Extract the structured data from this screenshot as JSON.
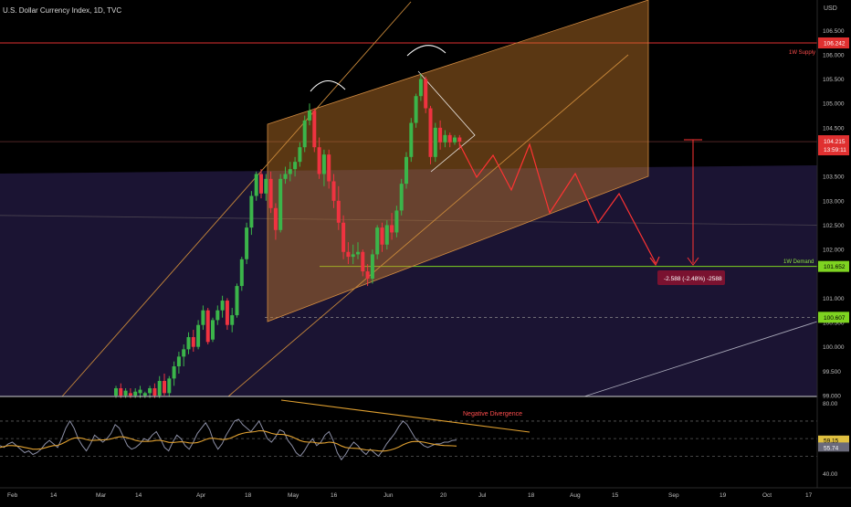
{
  "header": {
    "symbol_title": "U.S. Dollar Currency Index, 1D, TVC"
  },
  "price_axis": {
    "unit": "USD",
    "tick_labels": [
      "106.500",
      "106.000",
      "105.500",
      "105.000",
      "104.500",
      "103.500",
      "103.000",
      "102.500",
      "102.000",
      "101.000",
      "100.500",
      "100.000",
      "99.500",
      "99.000"
    ]
  },
  "badges": {
    "supply_price": "106.242",
    "current_price": "104.215",
    "countdown": "13:59:11",
    "demand_price": "101.652",
    "support_price": "100.607"
  },
  "annotations": {
    "supply_label": "1W Supply",
    "demand_label": "1W Demand",
    "measure_label": "-2.588 (-2.48%) -2588",
    "divergence_label": "Negative Divergence"
  },
  "rsi_panel": {
    "tick_labels": [
      "80.00",
      "40.00"
    ],
    "rsi_value": "59.15",
    "rsi_ma_value": "55.74"
  },
  "time_axis": {
    "labels": [
      "Feb",
      "14",
      "Mar",
      "14",
      "Apr",
      "18",
      "May",
      "16",
      "Jun",
      "20",
      "Jul",
      "18",
      "Aug",
      "15",
      "Sep",
      "19",
      "Oct",
      "17"
    ]
  },
  "colors": {
    "background": "#000000",
    "up_candle": "#3bb54a",
    "down_candle": "#ef3340",
    "channel_fill": "#c8792a",
    "zone_fill": "#1b1433",
    "supply_line": "#e03030",
    "demand_line": "#7ed321",
    "projection": "#ff3333",
    "rsi_line": "#8c8fa6",
    "rsi_ma": "#e0a030"
  },
  "chart_data": [
    {
      "type": "candlestick",
      "title": "U.S. Dollar Currency Index, 1D, TVC",
      "ylim": [
        98.95,
        107.2
      ],
      "ohlc": [
        {
          "o": 99.0,
          "h": 99.2,
          "l": 98.95,
          "c": 99.15
        },
        {
          "o": 99.15,
          "h": 99.25,
          "l": 98.95,
          "c": 99.0
        },
        {
          "o": 99.0,
          "h": 99.15,
          "l": 98.95,
          "c": 99.1
        },
        {
          "o": 99.05,
          "h": 99.15,
          "l": 98.95,
          "c": 99.0
        },
        {
          "o": 99.0,
          "h": 99.15,
          "l": 98.95,
          "c": 99.08
        },
        {
          "o": 99.05,
          "h": 99.2,
          "l": 98.95,
          "c": 99.12
        },
        {
          "o": 99.0,
          "h": 99.08,
          "l": 98.95,
          "c": 99.05
        },
        {
          "o": 99.05,
          "h": 99.2,
          "l": 98.95,
          "c": 99.15
        },
        {
          "o": 99.15,
          "h": 99.25,
          "l": 98.95,
          "c": 99.0
        },
        {
          "o": 99.0,
          "h": 99.4,
          "l": 98.95,
          "c": 99.3
        },
        {
          "o": 99.3,
          "h": 99.45,
          "l": 99.0,
          "c": 99.05
        },
        {
          "o": 99.05,
          "h": 99.4,
          "l": 98.98,
          "c": 99.35
        },
        {
          "o": 99.35,
          "h": 99.7,
          "l": 99.2,
          "c": 99.6
        },
        {
          "o": 99.6,
          "h": 99.9,
          "l": 99.45,
          "c": 99.8
        },
        {
          "o": 99.8,
          "h": 100.05,
          "l": 99.6,
          "c": 99.95
        },
        {
          "o": 99.95,
          "h": 100.3,
          "l": 99.85,
          "c": 100.2
        },
        {
          "o": 100.2,
          "h": 100.35,
          "l": 99.9,
          "c": 100.0
        },
        {
          "o": 100.0,
          "h": 100.55,
          "l": 99.95,
          "c": 100.45
        },
        {
          "o": 100.45,
          "h": 100.85,
          "l": 100.35,
          "c": 100.75
        },
        {
          "o": 100.75,
          "h": 100.8,
          "l": 100.05,
          "c": 100.1
        },
        {
          "o": 100.15,
          "h": 100.6,
          "l": 100.1,
          "c": 100.55
        },
        {
          "o": 100.55,
          "h": 100.85,
          "l": 100.45,
          "c": 100.75
        },
        {
          "o": 100.75,
          "h": 101.05,
          "l": 100.6,
          "c": 100.95
        },
        {
          "o": 100.95,
          "h": 101.0,
          "l": 100.35,
          "c": 100.45
        },
        {
          "o": 100.45,
          "h": 100.8,
          "l": 100.3,
          "c": 100.65
        },
        {
          "o": 100.65,
          "h": 101.3,
          "l": 100.6,
          "c": 101.25
        },
        {
          "o": 101.25,
          "h": 101.85,
          "l": 101.15,
          "c": 101.8
        },
        {
          "o": 101.8,
          "h": 102.55,
          "l": 101.7,
          "c": 102.45
        },
        {
          "o": 102.45,
          "h": 103.2,
          "l": 102.3,
          "c": 103.1
        },
        {
          "o": 103.1,
          "h": 103.6,
          "l": 103.0,
          "c": 103.55
        },
        {
          "o": 103.55,
          "h": 103.65,
          "l": 103.05,
          "c": 103.15
        },
        {
          "o": 103.15,
          "h": 103.55,
          "l": 103.0,
          "c": 103.45
        },
        {
          "o": 103.45,
          "h": 103.6,
          "l": 102.75,
          "c": 102.85
        },
        {
          "o": 102.85,
          "h": 102.95,
          "l": 102.2,
          "c": 102.4
        },
        {
          "o": 102.4,
          "h": 103.55,
          "l": 102.35,
          "c": 103.45
        },
        {
          "o": 103.45,
          "h": 103.7,
          "l": 103.35,
          "c": 103.55
        },
        {
          "o": 103.55,
          "h": 103.8,
          "l": 103.4,
          "c": 103.65
        },
        {
          "o": 103.65,
          "h": 103.9,
          "l": 103.5,
          "c": 103.8
        },
        {
          "o": 103.8,
          "h": 104.2,
          "l": 103.7,
          "c": 104.1
        },
        {
          "o": 104.1,
          "h": 104.75,
          "l": 104.0,
          "c": 104.65
        },
        {
          "o": 104.65,
          "h": 105.0,
          "l": 104.55,
          "c": 104.85
        },
        {
          "o": 104.85,
          "h": 104.9,
          "l": 104.0,
          "c": 104.1
        },
        {
          "o": 104.1,
          "h": 104.3,
          "l": 103.45,
          "c": 103.55
        },
        {
          "o": 103.55,
          "h": 104.05,
          "l": 103.3,
          "c": 103.95
        },
        {
          "o": 103.95,
          "h": 104.05,
          "l": 103.25,
          "c": 103.4
        },
        {
          "o": 103.4,
          "h": 103.55,
          "l": 102.85,
          "c": 103.0
        },
        {
          "o": 103.0,
          "h": 103.3,
          "l": 102.4,
          "c": 102.55
        },
        {
          "o": 102.55,
          "h": 102.7,
          "l": 101.8,
          "c": 101.95
        },
        {
          "o": 101.95,
          "h": 102.15,
          "l": 101.7,
          "c": 101.85
        },
        {
          "o": 101.85,
          "h": 102.1,
          "l": 101.7,
          "c": 101.9
        },
        {
          "o": 101.9,
          "h": 102.15,
          "l": 101.8,
          "c": 101.95
        },
        {
          "o": 101.95,
          "h": 102.0,
          "l": 101.45,
          "c": 101.55
        },
        {
          "o": 101.55,
          "h": 101.7,
          "l": 101.25,
          "c": 101.4
        },
        {
          "o": 101.4,
          "h": 102.0,
          "l": 101.3,
          "c": 101.9
        },
        {
          "o": 101.9,
          "h": 102.5,
          "l": 101.8,
          "c": 102.45
        },
        {
          "o": 102.45,
          "h": 102.55,
          "l": 101.95,
          "c": 102.1
        },
        {
          "o": 102.1,
          "h": 102.6,
          "l": 102.0,
          "c": 102.5
        },
        {
          "o": 102.5,
          "h": 102.75,
          "l": 102.2,
          "c": 102.35
        },
        {
          "o": 102.35,
          "h": 102.9,
          "l": 102.25,
          "c": 102.8
        },
        {
          "o": 102.8,
          "h": 103.45,
          "l": 102.7,
          "c": 103.35
        },
        {
          "o": 103.35,
          "h": 104.0,
          "l": 103.25,
          "c": 103.9
        },
        {
          "o": 103.9,
          "h": 104.7,
          "l": 103.8,
          "c": 104.6
        },
        {
          "o": 104.6,
          "h": 105.2,
          "l": 104.5,
          "c": 105.15
        },
        {
          "o": 105.15,
          "h": 105.6,
          "l": 105.05,
          "c": 105.5
        },
        {
          "o": 105.5,
          "h": 105.55,
          "l": 104.8,
          "c": 104.9
        },
        {
          "o": 104.9,
          "h": 104.95,
          "l": 103.75,
          "c": 103.9
        },
        {
          "o": 103.9,
          "h": 104.6,
          "l": 103.8,
          "c": 104.5
        },
        {
          "o": 104.5,
          "h": 104.65,
          "l": 104.05,
          "c": 104.2
        },
        {
          "o": 104.2,
          "h": 104.45,
          "l": 104.1,
          "c": 104.35
        },
        {
          "o": 104.35,
          "h": 104.4,
          "l": 104.1,
          "c": 104.2
        },
        {
          "o": 104.2,
          "h": 104.35,
          "l": 104.15,
          "c": 104.3
        },
        {
          "o": 104.3,
          "h": 104.35,
          "l": 104.05,
          "c": 104.215
        }
      ],
      "levels": {
        "supply": 106.242,
        "demand": 101.652,
        "support": 100.607,
        "current": 104.215
      },
      "projection_path": [
        104.2,
        103.5,
        103.9,
        103.0,
        104.1,
        103.0,
        103.5,
        102.7,
        103.1,
        101.6
      ]
    },
    {
      "type": "line",
      "title": "RSI",
      "ylim": [
        32,
        84
      ],
      "series": [
        {
          "values": [
            56,
            55,
            57,
            58,
            56,
            54,
            52,
            53,
            51,
            52,
            54,
            57,
            59,
            57,
            55,
            60,
            66,
            70,
            66,
            60,
            56,
            53,
            57,
            62,
            60,
            58,
            60,
            63,
            68,
            66,
            61,
            56,
            54,
            55,
            57,
            60,
            59,
            62,
            64,
            60,
            55,
            53,
            58,
            62,
            60,
            56,
            54,
            58,
            63,
            66,
            69,
            65,
            58,
            54,
            57,
            62,
            66,
            70,
            71,
            68,
            66,
            64,
            67,
            70,
            65,
            60,
            58,
            61,
            65,
            64,
            59,
            56,
            52,
            50,
            53,
            57,
            60,
            56,
            58,
            62,
            64,
            59,
            52,
            48,
            51,
            55,
            58,
            56,
            53,
            51,
            54,
            52,
            50,
            53,
            57,
            60,
            63,
            67,
            70,
            68,
            64,
            60,
            58,
            56,
            55,
            56,
            57,
            57,
            58,
            58,
            59,
            59.15
          ]
        },
        {
          "values": [
            55,
            55.5,
            56,
            56,
            55.8,
            55.5,
            55,
            54.5,
            54,
            54,
            54.2,
            54.8,
            55.5,
            56,
            56.2,
            57,
            58.2,
            59.5,
            60.3,
            60.5,
            60.2,
            59.5,
            59,
            59,
            59.2,
            59.3,
            59.4,
            59.8,
            60.5,
            61,
            61,
            60.5,
            59.8,
            59,
            58.5,
            58.4,
            58.4,
            58.6,
            59,
            59,
            58.5,
            57.9,
            57.8,
            58,
            58.2,
            58,
            57.6,
            57.5,
            57.8,
            58.5,
            59.5,
            60.2,
            60.2,
            59.8,
            59.5,
            59.6,
            60.3,
            61.3,
            62.3,
            63,
            63.5,
            63.7,
            64,
            64.5,
            64.4,
            63.8,
            63,
            62.5,
            62.4,
            62.3,
            61.8,
            61,
            60,
            58.9,
            58.2,
            58,
            58,
            57.6,
            57.4,
            57.6,
            58,
            57.8,
            57,
            55.8,
            55,
            54.6,
            54.5,
            54.4,
            54,
            53.6,
            53.5,
            53.3,
            53,
            52.9,
            53.1,
            53.6,
            54.3,
            55.3,
            56.5,
            57.5,
            58.2,
            58.4,
            58.3,
            58,
            57.5,
            57,
            56.6,
            56.3,
            56.1,
            56,
            55.9,
            55.74
          ]
        }
      ],
      "bands": [
        70,
        60,
        50
      ]
    }
  ]
}
